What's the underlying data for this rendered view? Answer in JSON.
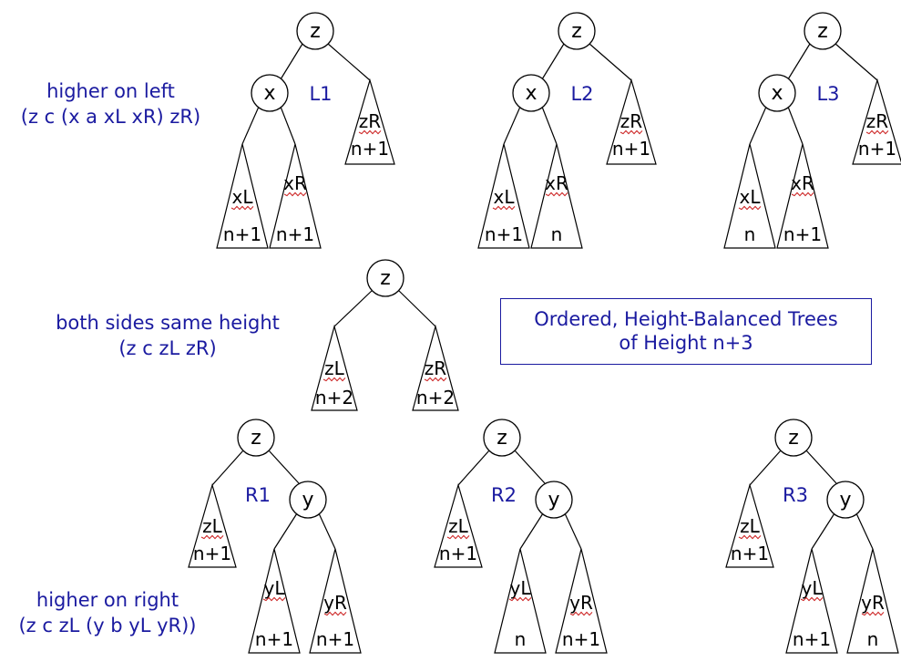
{
  "title": {
    "line1": "Ordered, Height-Balanced Trees",
    "line2": "of Height n+3"
  },
  "captions": {
    "left_heavy": {
      "line1": "higher on left",
      "line2": "(z c (x a xL xR) zR)"
    },
    "balanced": {
      "line1": "both sides same height",
      "line2": "(z c zL zR)"
    },
    "right_heavy": {
      "line1": "higher on right",
      "line2": "(z c zL (y b yL yR))"
    }
  },
  "trees": [
    {
      "case": "L1",
      "root": "z",
      "child": "x",
      "subtrees": [
        {
          "name": "xL",
          "height": "n+1"
        },
        {
          "name": "xR",
          "height": "n+1"
        },
        {
          "name": "zR",
          "height": "n+1"
        }
      ]
    },
    {
      "case": "L2",
      "root": "z",
      "child": "x",
      "subtrees": [
        {
          "name": "xL",
          "height": "n+1"
        },
        {
          "name": "xR",
          "height": "n"
        },
        {
          "name": "zR",
          "height": "n+1"
        }
      ]
    },
    {
      "case": "L3",
      "root": "z",
      "child": "x",
      "subtrees": [
        {
          "name": "xL",
          "height": "n"
        },
        {
          "name": "xR",
          "height": "n+1"
        },
        {
          "name": "zR",
          "height": "n+1"
        }
      ]
    },
    {
      "case": "",
      "root": "z",
      "child": "",
      "subtrees": [
        {
          "name": "zL",
          "height": "n+2"
        },
        {
          "name": "zR",
          "height": "n+2"
        }
      ]
    },
    {
      "case": "R1",
      "root": "z",
      "child": "y",
      "subtrees": [
        {
          "name": "zL",
          "height": "n+1"
        },
        {
          "name": "yL",
          "height": "n+1"
        },
        {
          "name": "yR",
          "height": "n+1"
        }
      ]
    },
    {
      "case": "R2",
      "root": "z",
      "child": "y",
      "subtrees": [
        {
          "name": "zL",
          "height": "n+1"
        },
        {
          "name": "yL",
          "height": "n"
        },
        {
          "name": "yR",
          "height": "n+1"
        }
      ]
    },
    {
      "case": "R3",
      "root": "z",
      "child": "y",
      "subtrees": [
        {
          "name": "zL",
          "height": "n+1"
        },
        {
          "name": "yL",
          "height": "n+1"
        },
        {
          "name": "yR",
          "height": "n"
        }
      ]
    }
  ],
  "colors": {
    "text": "#1a1aa0",
    "line": "#000000",
    "squiggle": "#cc2222"
  }
}
